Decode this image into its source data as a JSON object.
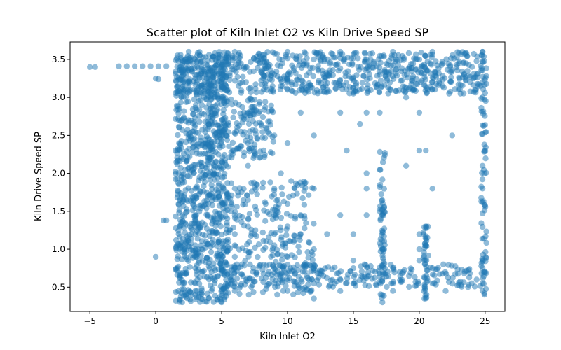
{
  "chart_data": {
    "type": "scatter",
    "title": "Scatter plot of Kiln Inlet O2 vs Kiln Drive Speed SP",
    "xlabel": "Kiln Inlet O2",
    "ylabel": "Kiln Drive Speed SP",
    "xlim": [
      -6.5,
      26.5
    ],
    "ylim": [
      0.18,
      3.73
    ],
    "xticks": [
      -5,
      0,
      5,
      10,
      15,
      20,
      25
    ],
    "xtick_labels": [
      "−5",
      "0",
      "5",
      "10",
      "15",
      "20",
      "25"
    ],
    "yticks": [
      0.5,
      1.0,
      1.5,
      2.0,
      2.5,
      3.0,
      3.5
    ],
    "ytick_labels": [
      "0.5",
      "1.0",
      "1.5",
      "2.0",
      "2.5",
      "3.0",
      "3.5"
    ],
    "grid": false,
    "legend": "none",
    "marker_color": "#1f77b4",
    "marker_alpha": 0.5,
    "series": [
      {
        "points": [
          [
            -5.0,
            3.4
          ],
          [
            -4.6,
            3.4
          ],
          [
            -2.8,
            3.41
          ],
          [
            -2.2,
            3.41
          ],
          [
            -1.6,
            3.41
          ],
          [
            -1.0,
            3.41
          ],
          [
            -0.4,
            3.41
          ],
          [
            0.2,
            3.41
          ],
          [
            0.8,
            3.41
          ],
          [
            0.0,
            3.25
          ],
          [
            0.2,
            3.24
          ],
          [
            0.0,
            0.9
          ],
          [
            0.6,
            1.38
          ],
          [
            0.8,
            1.38
          ],
          [
            2.5,
            3.6
          ],
          [
            6.0,
            3.6
          ],
          [
            10.0,
            3.6
          ],
          [
            14.0,
            3.6
          ],
          [
            18.0,
            3.6
          ],
          [
            21.0,
            3.6
          ],
          [
            24.8,
            3.6
          ],
          [
            3.0,
            3.5
          ],
          [
            8.0,
            3.5
          ],
          [
            12.0,
            3.5
          ],
          [
            16.0,
            3.5
          ],
          [
            20.0,
            3.5
          ],
          [
            23.0,
            3.45
          ],
          [
            4.0,
            3.3
          ],
          [
            9.0,
            3.3
          ],
          [
            13.0,
            3.3
          ],
          [
            17.0,
            3.3
          ],
          [
            21.0,
            3.2
          ],
          [
            24.8,
            3.2
          ],
          [
            5.0,
            3.1
          ],
          [
            10.0,
            3.1
          ],
          [
            15.0,
            3.05
          ],
          [
            19.0,
            3.0
          ],
          [
            24.8,
            3.0
          ],
          [
            3.5,
            2.9
          ],
          [
            7.0,
            2.8
          ],
          [
            11.0,
            2.8
          ],
          [
            14.0,
            2.8
          ],
          [
            16.0,
            2.8
          ],
          [
            17.0,
            2.8
          ],
          [
            20.0,
            2.8
          ],
          [
            4.0,
            2.65
          ],
          [
            8.0,
            2.65
          ],
          [
            15.5,
            2.65
          ],
          [
            5.0,
            2.5
          ],
          [
            9.0,
            2.5
          ],
          [
            12.0,
            2.5
          ],
          [
            22.5,
            2.5
          ],
          [
            4.0,
            2.4
          ],
          [
            7.0,
            2.4
          ],
          [
            10.0,
            2.4
          ],
          [
            14.5,
            2.3
          ],
          [
            20.0,
            2.3
          ],
          [
            20.5,
            2.3
          ],
          [
            4.0,
            2.2
          ],
          [
            7.0,
            2.1
          ],
          [
            9.5,
            2.0
          ],
          [
            16.0,
            2.0
          ],
          [
            19.0,
            2.1
          ],
          [
            24.8,
            2.1
          ],
          [
            3.0,
            1.8
          ],
          [
            6.0,
            1.8
          ],
          [
            9.0,
            1.8
          ],
          [
            12.0,
            1.8
          ],
          [
            16.0,
            1.8
          ],
          [
            21.0,
            1.8
          ],
          [
            24.8,
            1.8
          ],
          [
            4.0,
            1.6
          ],
          [
            7.0,
            1.65
          ],
          [
            10.0,
            1.6
          ],
          [
            3.0,
            1.45
          ],
          [
            6.0,
            1.45
          ],
          [
            9.0,
            1.45
          ],
          [
            11.0,
            1.45
          ],
          [
            14.0,
            1.45
          ],
          [
            16.0,
            1.45
          ],
          [
            17.2,
            1.45
          ],
          [
            3.0,
            1.3
          ],
          [
            7.0,
            1.3
          ],
          [
            10.0,
            1.3
          ],
          [
            20.5,
            1.3
          ],
          [
            3.0,
            1.2
          ],
          [
            6.0,
            1.2
          ],
          [
            9.0,
            1.2
          ],
          [
            11.0,
            1.2
          ],
          [
            13.0,
            1.2
          ],
          [
            15.0,
            1.2
          ],
          [
            20.0,
            1.2
          ],
          [
            3.0,
            1.05
          ],
          [
            6.0,
            1.05
          ],
          [
            9.0,
            1.05
          ],
          [
            12.0,
            1.0
          ],
          [
            17.2,
            1.0
          ],
          [
            20.0,
            1.0
          ],
          [
            3.0,
            0.9
          ],
          [
            6.0,
            0.9
          ],
          [
            10.0,
            0.9
          ],
          [
            15.0,
            0.85
          ],
          [
            20.0,
            0.85
          ],
          [
            24.8,
            0.85
          ],
          [
            3.0,
            0.75
          ],
          [
            6.0,
            0.75
          ],
          [
            9.0,
            0.75
          ],
          [
            12.0,
            0.75
          ],
          [
            15.0,
            0.75
          ],
          [
            18.0,
            0.75
          ],
          [
            21.0,
            0.75
          ],
          [
            24.8,
            0.75
          ],
          [
            3.0,
            0.55
          ],
          [
            6.0,
            0.55
          ],
          [
            9.0,
            0.55
          ],
          [
            12.0,
            0.55
          ],
          [
            15.0,
            0.55
          ],
          [
            18.0,
            0.55
          ],
          [
            21.0,
            0.55
          ],
          [
            24.8,
            0.55
          ],
          [
            3.0,
            0.45
          ],
          [
            6.0,
            0.45
          ],
          [
            10.0,
            0.45
          ],
          [
            14.0,
            0.45
          ],
          [
            18.0,
            0.45
          ],
          [
            22.0,
            0.45
          ],
          [
            24.8,
            0.45
          ],
          [
            2.0,
            0.3
          ],
          [
            5.0,
            0.3
          ],
          [
            12.0,
            0.35
          ],
          [
            17.2,
            0.3
          ]
        ]
      }
    ]
  }
}
